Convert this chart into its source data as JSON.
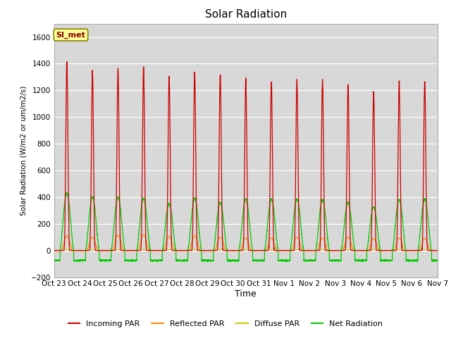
{
  "title": "Solar Radiation",
  "ylabel": "Solar Radiation (W/m2 or um/m2/s)",
  "xlabel": "Time",
  "ylim": [
    -200,
    1700
  ],
  "yticks": [
    -200,
    0,
    200,
    400,
    600,
    800,
    1000,
    1200,
    1400,
    1600
  ],
  "background_color": "#e8e8e8",
  "plot_bg_color": "#d8d8d8",
  "legend_entries": [
    "Incoming PAR",
    "Reflected PAR",
    "Diffuse PAR",
    "Net Radiation"
  ],
  "legend_colors": [
    "#cc0000",
    "#ff8800",
    "#cccc00",
    "#00cc00"
  ],
  "station_label": "SI_met",
  "station_label_color": "#880000",
  "station_label_bg": "#ffff99",
  "num_days": 15,
  "day_labels": [
    "Oct 23",
    "Oct 24",
    "Oct 25",
    "Oct 26",
    "Oct 27",
    "Oct 28",
    "Oct 29",
    "Oct 30",
    "Oct 31",
    "Nov 1",
    "Nov 2",
    "Nov 3",
    "Nov 4",
    "Nov 5",
    "Nov 6",
    "Nov 7"
  ],
  "incoming_peaks": [
    1415,
    1350,
    1360,
    1380,
    1310,
    1330,
    1320,
    1290,
    1265,
    1280,
    1275,
    1240,
    1195,
    1265,
    1270
  ],
  "net_peaks": [
    430,
    400,
    400,
    390,
    350,
    390,
    360,
    385,
    385,
    385,
    380,
    360,
    325,
    380,
    385
  ],
  "reflected_peaks": [
    110,
    100,
    115,
    120,
    105,
    110,
    100,
    95,
    95,
    100,
    95,
    100,
    90,
    95,
    90
  ],
  "diffuse_peaks": [
    5,
    5,
    5,
    5,
    5,
    5,
    5,
    5,
    5,
    5,
    5,
    5,
    5,
    5,
    5
  ],
  "night_val_net": -75,
  "samples_per_day": 288
}
